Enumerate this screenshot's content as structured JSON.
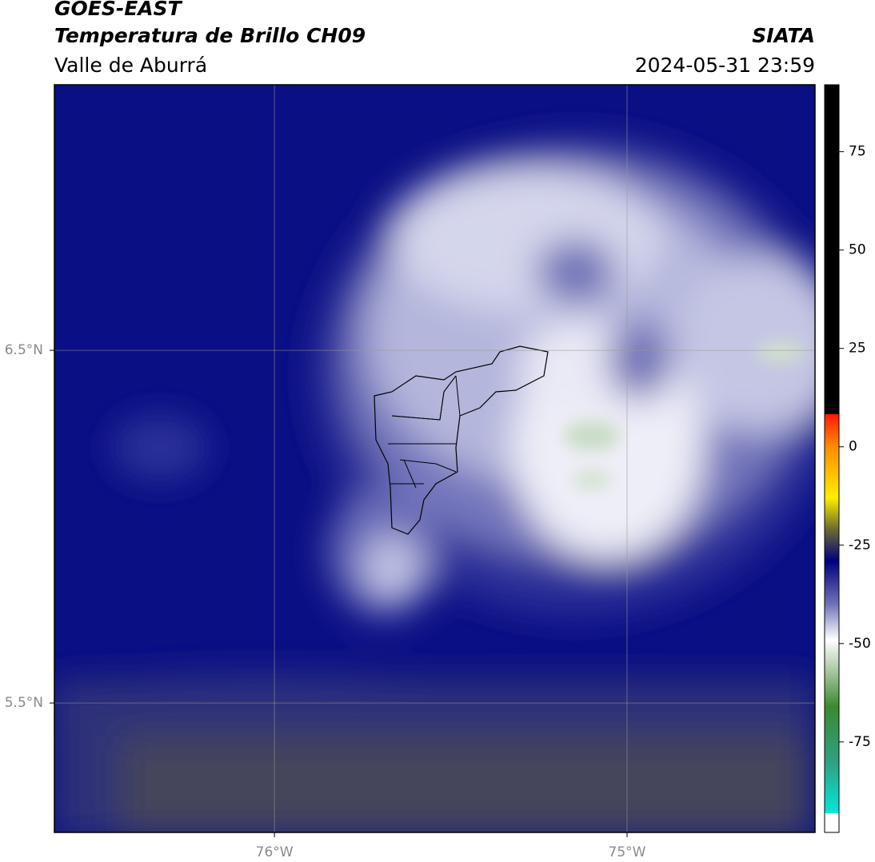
{
  "header": {
    "title": "GOES-EAST",
    "subtitle": "Temperatura de Brillo CH09",
    "region": "Valle de Aburrá",
    "source": "SIATA",
    "datetime": "2024-05-31 23:59"
  },
  "map": {
    "xlim": [
      -76.624,
      -74.467
    ],
    "ylim": [
      5.133,
      7.253
    ],
    "xticks": [
      {
        "value": -76,
        "label": "76°W"
      },
      {
        "value": -75,
        "label": "75°W"
      }
    ],
    "yticks": [
      {
        "value": 6.5,
        "label": "6.5°N"
      },
      {
        "value": 5.5,
        "label": "5.5°N"
      }
    ],
    "grid": true
  },
  "colorbar": {
    "lim": [
      -98,
      92
    ],
    "ticks": [
      75,
      50,
      25,
      0,
      -25,
      -50,
      -75
    ],
    "stops": [
      {
        "value": 92,
        "color": "#000000"
      },
      {
        "value": 8.4,
        "color": "#000000"
      },
      {
        "value": 8.2,
        "color": "#ff1a00"
      },
      {
        "value": 0,
        "color": "#ff8c00"
      },
      {
        "value": -13,
        "color": "#ffee00"
      },
      {
        "value": -21,
        "color": "#6a6a30"
      },
      {
        "value": -29,
        "color": "#000080"
      },
      {
        "value": -40,
        "color": "#7072b8"
      },
      {
        "value": -49,
        "color": "#ffffff"
      },
      {
        "value": -57,
        "color": "#a8c8a0"
      },
      {
        "value": -66,
        "color": "#3a8a30"
      },
      {
        "value": -80,
        "color": "#30a080"
      },
      {
        "value": -93,
        "color": "#00e8d8"
      },
      {
        "value": -93.2,
        "color": "#ffffff"
      },
      {
        "value": -98,
        "color": "#ffffff"
      }
    ]
  }
}
